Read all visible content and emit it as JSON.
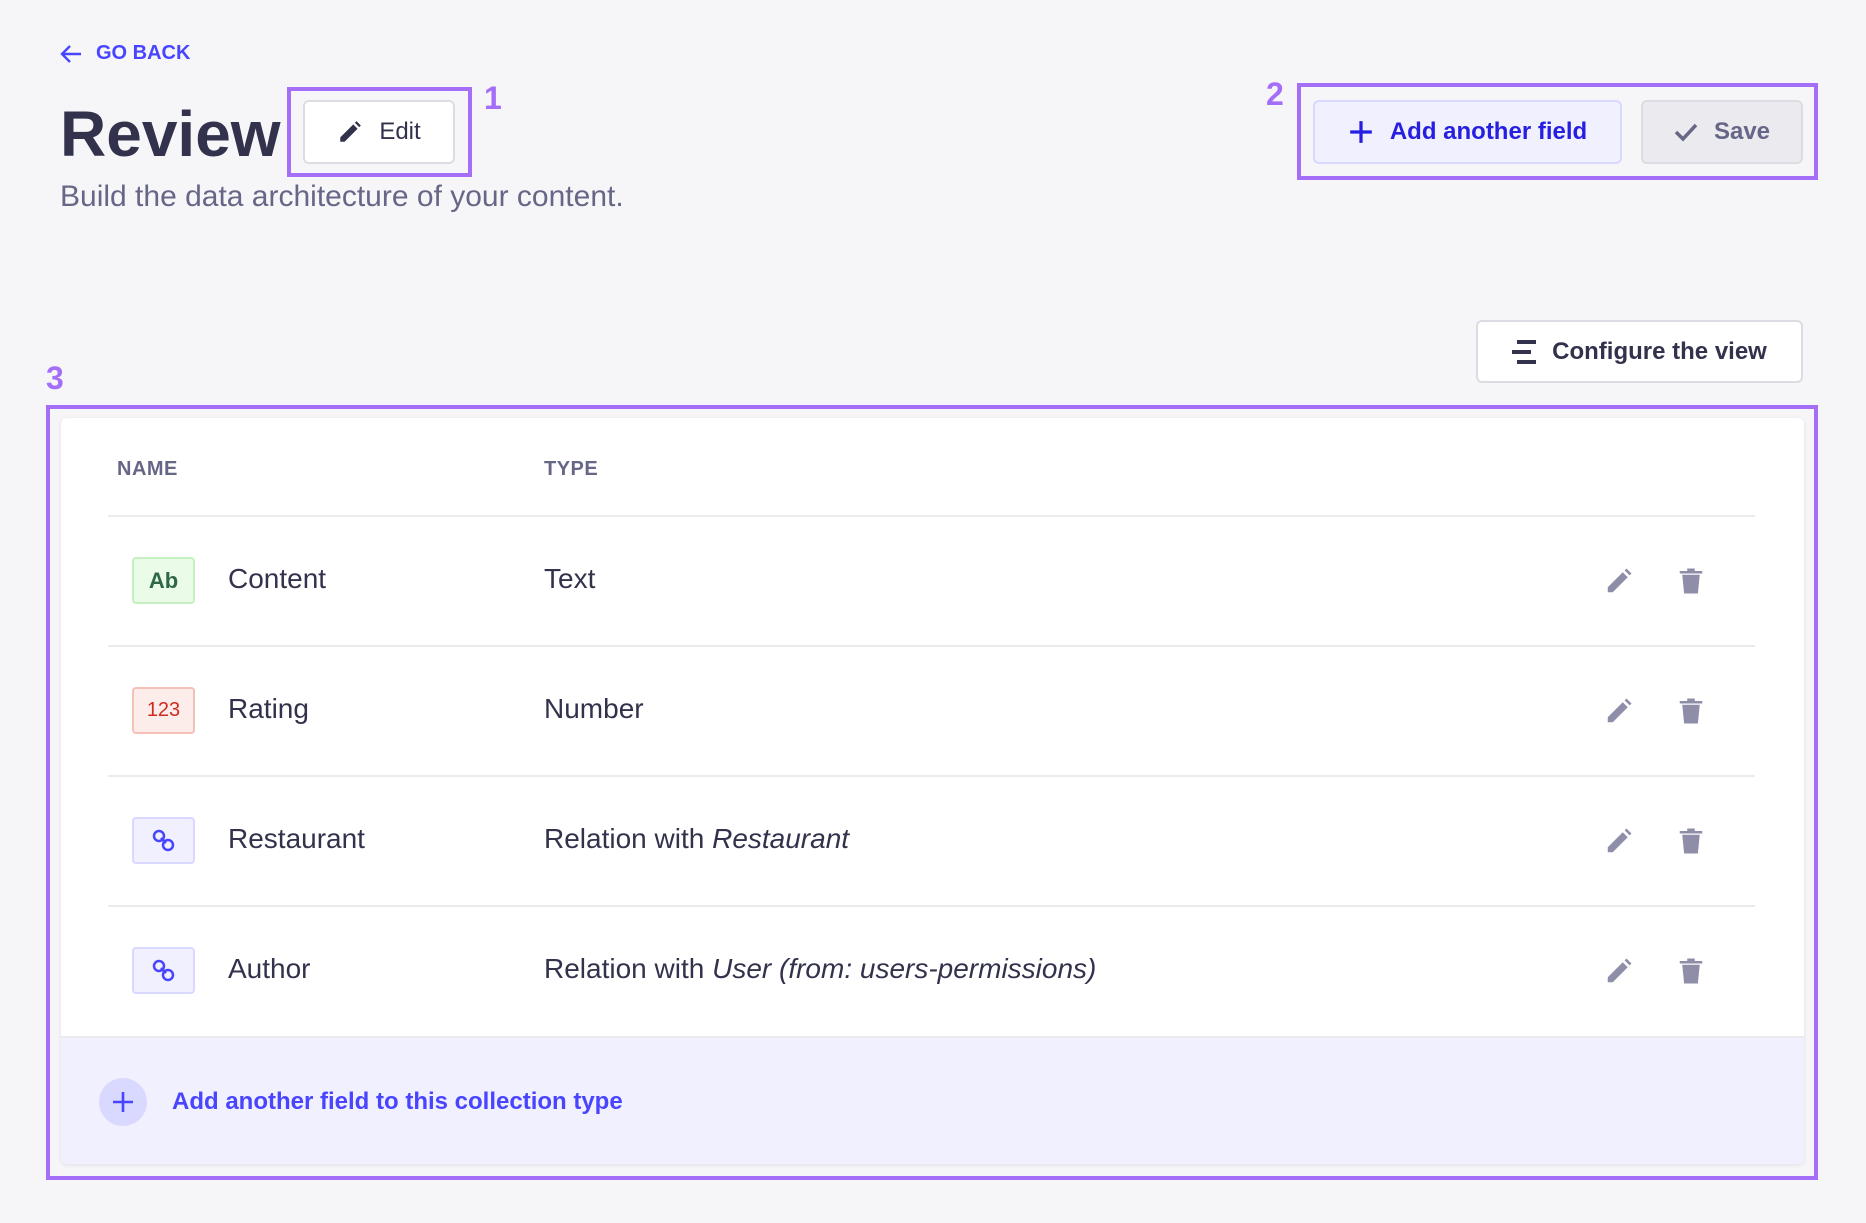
{
  "header": {
    "back_label": "GO BACK",
    "title": "Review",
    "edit_label": "Edit",
    "subtitle": "Build the data architecture of your content.",
    "add_field_label": "Add another field",
    "save_label": "Save",
    "configure_label": "Configure the view"
  },
  "annotations": [
    "1",
    "2",
    "3"
  ],
  "table": {
    "columns": [
      "NAME",
      "TYPE"
    ],
    "rows": [
      {
        "badge": "Ab",
        "badge_kind": "text",
        "name": "Content",
        "type": "Text",
        "type_target": ""
      },
      {
        "badge": "123",
        "badge_kind": "number",
        "name": "Rating",
        "type": "Number",
        "type_target": ""
      },
      {
        "badge": "",
        "badge_kind": "relation",
        "name": "Restaurant",
        "type": "Relation with ",
        "type_target": "Restaurant"
      },
      {
        "badge": "",
        "badge_kind": "relation",
        "name": "Author",
        "type": "Relation with ",
        "type_target": "User (from: users-permissions)"
      }
    ],
    "footer_label": "Add another field to this collection type"
  },
  "colors": {
    "primary": "#4945ff",
    "highlight": "#a56ef9",
    "background": "#f6f6f9"
  }
}
